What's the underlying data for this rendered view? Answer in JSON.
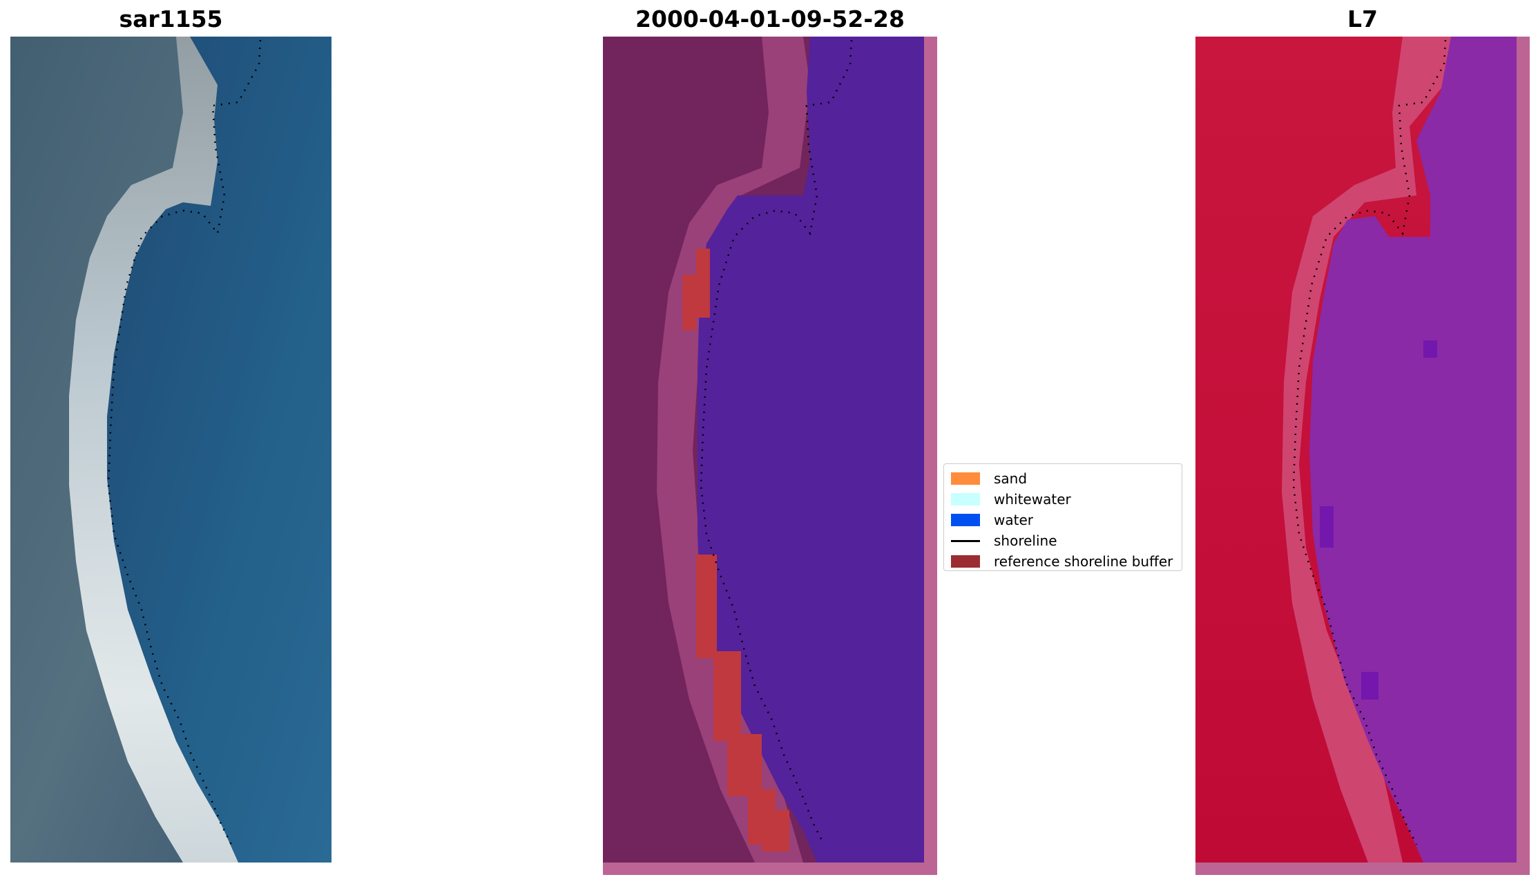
{
  "panels": [
    {
      "id": "rgb",
      "title": "sar1155"
    },
    {
      "id": "classified",
      "title": "2000-04-01-09-52-28"
    },
    {
      "id": "mndwi",
      "title": "L7"
    }
  ],
  "legend": {
    "placement": "center",
    "items": [
      {
        "label": "sand",
        "color": "#ff8c3c",
        "kind": "patch"
      },
      {
        "label": "whitewater",
        "color": "#c8ffff",
        "kind": "patch"
      },
      {
        "label": "water",
        "color": "#0050f0",
        "kind": "patch"
      },
      {
        "label": "shoreline",
        "color": "#000000",
        "kind": "line"
      },
      {
        "label": "reference shoreline buffer",
        "color": "#9b2d32",
        "kind": "patch"
      }
    ]
  },
  "colors": {
    "rgb_land": "#4a6478",
    "rgb_water": "#215882",
    "rgb_beach": "#e8eef0",
    "class_land": "#72245c",
    "class_water": "#54229a",
    "class_buffer": "#c0393f",
    "class_border": "#bc6494",
    "l7_land": "#c4123e",
    "l7_water": "#8a2aa6",
    "l7_border": "#bc6494"
  }
}
